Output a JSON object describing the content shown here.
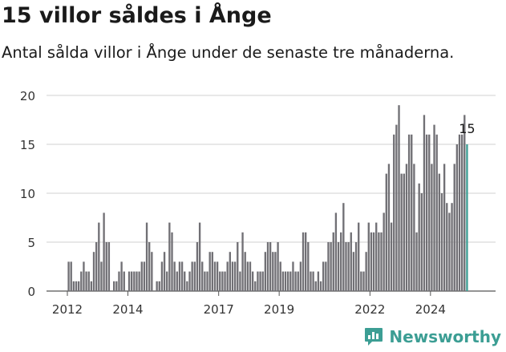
{
  "title": "15 villor såldes i Ånge",
  "subtitle": "Antal sålda villor i Ånge under de senaste tre månaderna.",
  "brand": {
    "name": "Newsworthy",
    "color": "#3c9e94",
    "icon": "newsworthy-logo-icon"
  },
  "chart_data": {
    "type": "bar",
    "xlabel": "",
    "ylabel": "",
    "ylim": [
      0,
      20
    ],
    "yticks": [
      0,
      5,
      10,
      15,
      20
    ],
    "xticks": [
      "2012",
      "2014",
      "2017",
      "2019",
      "2022",
      "2024"
    ],
    "start": "2012-01",
    "bar_color": "#717075",
    "highlight_color": "#3c9e94",
    "grid": true,
    "annotation": {
      "text": "15",
      "target": "last"
    },
    "values": [
      3,
      3,
      1,
      1,
      1,
      2,
      3,
      2,
      2,
      1,
      4,
      5,
      7,
      3,
      8,
      5,
      5,
      0,
      1,
      1,
      2,
      3,
      2,
      0,
      2,
      2,
      2,
      2,
      2,
      3,
      3,
      7,
      5,
      4,
      0,
      1,
      1,
      3,
      4,
      2,
      7,
      6,
      3,
      2,
      3,
      3,
      2,
      1,
      2,
      3,
      3,
      5,
      7,
      3,
      2,
      2,
      4,
      4,
      3,
      3,
      2,
      2,
      2,
      3,
      4,
      3,
      3,
      5,
      2,
      6,
      4,
      3,
      3,
      2,
      1,
      2,
      2,
      2,
      4,
      5,
      5,
      4,
      4,
      5,
      3,
      2,
      2,
      2,
      2,
      3,
      2,
      2,
      3,
      6,
      6,
      5,
      2,
      2,
      1,
      2,
      1,
      3,
      3,
      5,
      5,
      6,
      8,
      5,
      6,
      9,
      5,
      5,
      6,
      4,
      5,
      7,
      2,
      2,
      4,
      7,
      6,
      6,
      7,
      6,
      6,
      8,
      12,
      13,
      7,
      16,
      17,
      19,
      12,
      12,
      13,
      16,
      16,
      13,
      6,
      11,
      10,
      18,
      16,
      16,
      13,
      17,
      16,
      12,
      10,
      13,
      9,
      8,
      9,
      13,
      15,
      16,
      16,
      18,
      15
    ]
  }
}
